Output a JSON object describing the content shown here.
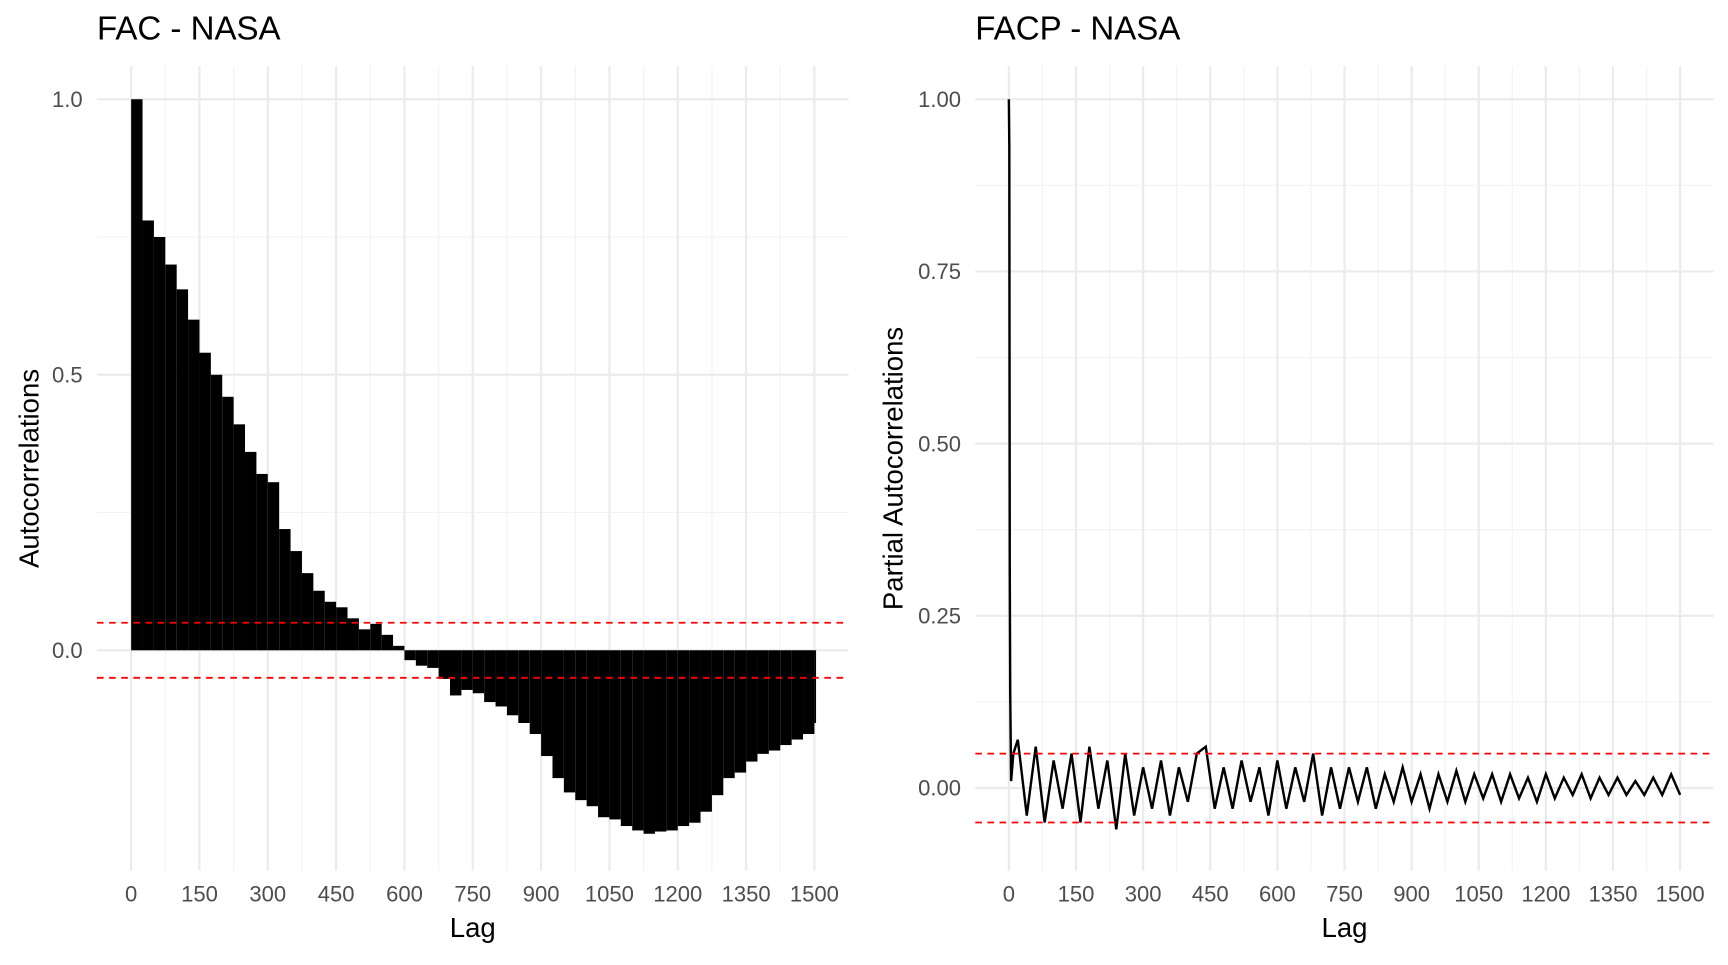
{
  "chart_data": [
    {
      "type": "acf",
      "title": "FAC - NASA",
      "x_label": "Lag",
      "y_label": "Autocorrelations",
      "color": "#000000",
      "ci": [
        0.05,
        -0.05
      ],
      "ci_color": "#ff0000",
      "grid": true,
      "x": [
        0,
        25,
        50,
        75,
        100,
        125,
        150,
        175,
        200,
        225,
        250,
        275,
        300,
        325,
        350,
        375,
        400,
        425,
        450,
        475,
        500,
        525,
        550,
        575,
        600,
        625,
        650,
        675,
        700,
        725,
        750,
        775,
        800,
        825,
        850,
        875,
        900,
        925,
        950,
        975,
        1000,
        1025,
        1050,
        1075,
        1100,
        1125,
        1150,
        1175,
        1200,
        1225,
        1250,
        1275,
        1300,
        1325,
        1350,
        1375,
        1400,
        1425,
        1450,
        1475,
        1500
      ],
      "values": [
        1.0,
        0.78,
        0.75,
        0.7,
        0.655,
        0.6,
        0.54,
        0.5,
        0.46,
        0.41,
        0.36,
        0.32,
        0.305,
        0.22,
        0.18,
        0.14,
        0.108,
        0.088,
        0.078,
        0.058,
        0.038,
        0.048,
        0.028,
        0.008,
        -0.018,
        -0.028,
        -0.032,
        -0.052,
        -0.082,
        -0.072,
        -0.078,
        -0.094,
        -0.102,
        -0.118,
        -0.132,
        -0.152,
        -0.192,
        -0.232,
        -0.258,
        -0.272,
        -0.283,
        -0.303,
        -0.307,
        -0.319,
        -0.327,
        -0.333,
        -0.329,
        -0.327,
        -0.319,
        -0.313,
        -0.293,
        -0.263,
        -0.232,
        -0.222,
        -0.202,
        -0.188,
        -0.182,
        -0.172,
        -0.162,
        -0.152,
        -0.132
      ],
      "xlim": [
        -75,
        1575
      ],
      "ylim": [
        -0.4,
        1.06
      ],
      "xticks": [
        0,
        150,
        300,
        450,
        600,
        750,
        900,
        1050,
        1200,
        1350,
        1500
      ],
      "yticks": [
        {
          "value": 0,
          "label": "0.0"
        },
        0.5,
        {
          "value": 1,
          "label": "1.0"
        }
      ]
    },
    {
      "type": "line",
      "title": "FACP - NASA",
      "x_label": "Lag",
      "y_label": "Partial Autocorrelations",
      "color": "#000000",
      "ci": [
        0.05,
        -0.05
      ],
      "ci_color": "#ff0000",
      "grid": true,
      "x": [
        0,
        1,
        2,
        3,
        5,
        10,
        20,
        40,
        60,
        80,
        100,
        120,
        140,
        160,
        180,
        200,
        220,
        240,
        260,
        280,
        300,
        320,
        340,
        360,
        380,
        400,
        420,
        440,
        460,
        480,
        500,
        520,
        540,
        560,
        580,
        600,
        620,
        640,
        660,
        680,
        700,
        720,
        740,
        760,
        780,
        800,
        820,
        840,
        860,
        880,
        900,
        920,
        940,
        960,
        980,
        1000,
        1020,
        1040,
        1060,
        1080,
        1100,
        1120,
        1140,
        1160,
        1180,
        1200,
        1220,
        1240,
        1260,
        1280,
        1300,
        1320,
        1340,
        1360,
        1380,
        1400,
        1420,
        1440,
        1460,
        1480,
        1500
      ],
      "values": [
        1.0,
        0.93,
        0.32,
        0.14,
        0.01,
        0.05,
        0.07,
        -0.04,
        0.06,
        -0.05,
        0.04,
        -0.03,
        0.05,
        -0.05,
        0.06,
        -0.03,
        0.04,
        -0.06,
        0.05,
        -0.04,
        0.03,
        -0.03,
        0.04,
        -0.04,
        0.03,
        -0.02,
        0.05,
        0.06,
        -0.03,
        0.03,
        -0.03,
        0.04,
        -0.02,
        0.03,
        -0.04,
        0.04,
        -0.03,
        0.03,
        -0.02,
        0.05,
        -0.04,
        0.03,
        -0.03,
        0.03,
        -0.02,
        0.03,
        -0.03,
        0.02,
        -0.02,
        0.03,
        -0.02,
        0.02,
        -0.03,
        0.02,
        -0.02,
        0.025,
        -0.02,
        0.02,
        -0.015,
        0.02,
        -0.02,
        0.02,
        -0.015,
        0.015,
        -0.02,
        0.02,
        -0.015,
        0.015,
        -0.01,
        0.02,
        -0.015,
        0.015,
        -0.01,
        0.015,
        -0.01,
        0.01,
        -0.01,
        0.015,
        -0.01,
        0.02,
        -0.01
      ],
      "xlim": [
        -75,
        1575
      ],
      "ylim": [
        -0.12,
        1.048
      ],
      "xticks": [
        0,
        150,
        300,
        450,
        600,
        750,
        900,
        1050,
        1200,
        1350,
        1500
      ],
      "yticks": [
        {
          "value": 0,
          "label": "0.00"
        },
        0.25,
        {
          "value": 0.5,
          "label": "0.50"
        },
        0.75,
        {
          "value": 1,
          "label": "1.00"
        }
      ]
    }
  ]
}
